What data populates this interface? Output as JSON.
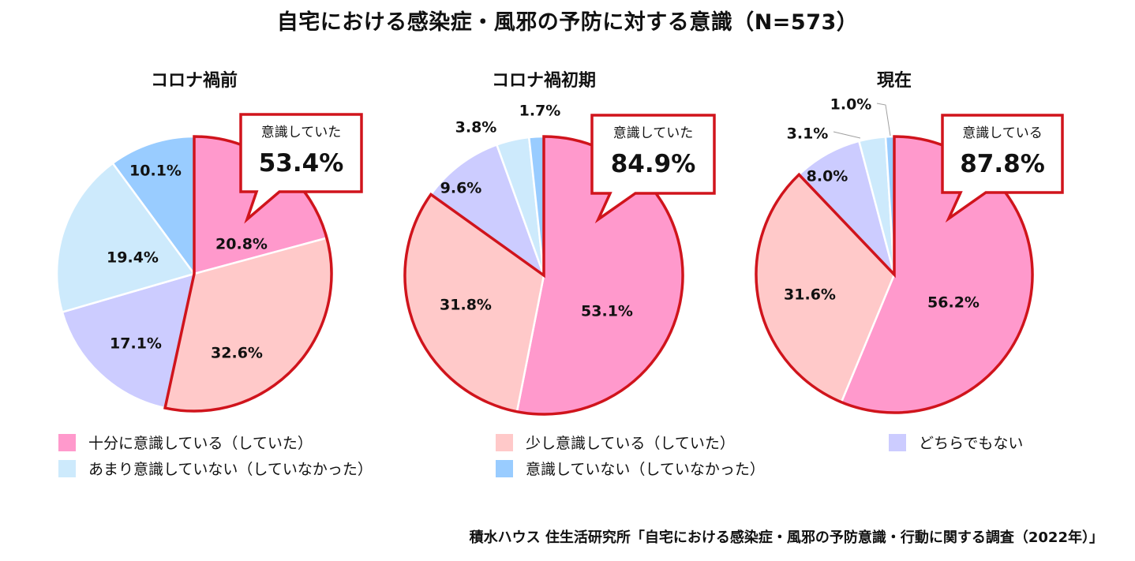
{
  "chart_data": [
    {
      "type": "pie",
      "title": "自宅における感染症・風邪の予防に対する意識（N=573）",
      "subtitle": "コロナ禍前",
      "categories": [
        "十分に意識している（していた）",
        "少し意識している（していた）",
        "どちらでもない",
        "あまり意識していない（していなかった）",
        "意識していない（していなかった）"
      ],
      "values": [
        20.8,
        32.6,
        17.1,
        19.4,
        10.1
      ],
      "labels": [
        "20.8%",
        "32.6%",
        "17.1%",
        "19.4%",
        "10.1%"
      ],
      "callout": {
        "label": "意識していた",
        "value": "53.4%"
      }
    },
    {
      "type": "pie",
      "title": "自宅における感染症・風邪の予防に対する意識（N=573）",
      "subtitle": "コロナ禍初期",
      "categories": [
        "十分に意識している（していた）",
        "少し意識している（していた）",
        "どちらでもない",
        "あまり意識していない（していなかった）",
        "意識していない（していなかった）"
      ],
      "values": [
        53.1,
        31.8,
        9.6,
        3.8,
        1.7
      ],
      "labels": [
        "53.1%",
        "31.8%",
        "9.6%",
        "3.8%",
        "1.7%"
      ],
      "callout": {
        "label": "意識していた",
        "value": "84.9%"
      }
    },
    {
      "type": "pie",
      "title": "自宅における感染症・風邪の予防に対する意識（N=573）",
      "subtitle": "現在",
      "categories": [
        "十分に意識している（していた）",
        "少し意識している（していた）",
        "どちらでもない",
        "あまり意識していない（していなかった）",
        "意識していない（していなかった）"
      ],
      "values": [
        56.2,
        31.6,
        8.0,
        3.1,
        1.0
      ],
      "labels": [
        "56.2%",
        "31.6%",
        "8.0%",
        "3.1%",
        "1.0%"
      ],
      "callout": {
        "label": "意識している",
        "value": "87.8%"
      }
    }
  ],
  "header": {
    "title": "自宅における感染症・風邪の予防に対する意識（N=573）"
  },
  "pies": [
    {
      "title": "コロナ禍前"
    },
    {
      "title": "コロナ禍初期"
    },
    {
      "title": "現在"
    }
  ],
  "legend": [
    {
      "label": "十分に意識している（していた）",
      "color": "#ff99cc"
    },
    {
      "label": "少し意識している（していた）",
      "color": "#ffc9c9"
    },
    {
      "label": "どちらでもない",
      "color": "#ccccff"
    },
    {
      "label": "あまり意識していない（していなかった）",
      "color": "#cdeafc"
    },
    {
      "label": "意識していない（していなかった）",
      "color": "#99ccff"
    }
  ],
  "colors": {
    "highlight_outline": "#d0141c",
    "separator": "#ffffff"
  },
  "source": "積水ハウス 住生活研究所「自宅における感染症・風邪の予防意識・行動に関する調査（2022年）」"
}
